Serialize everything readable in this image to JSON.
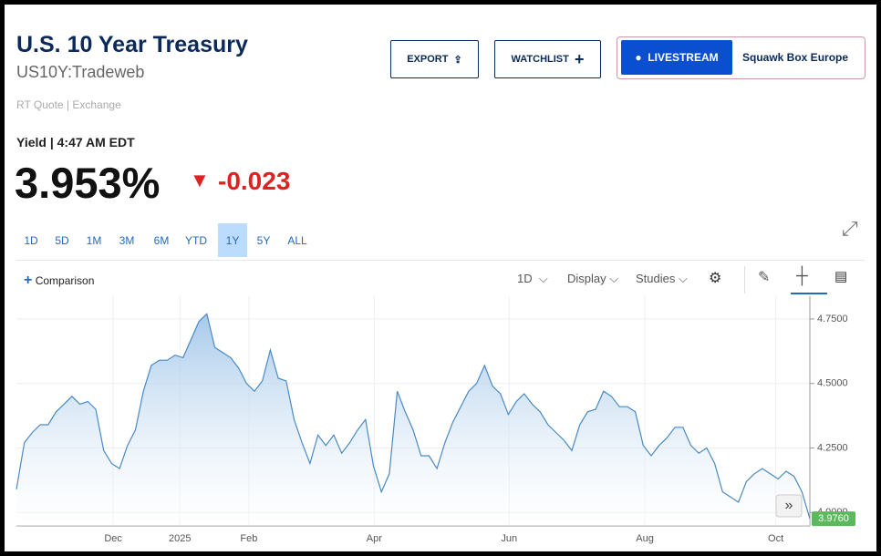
{
  "header": {
    "title": "U.S. 10 Year Treasury",
    "symbol": "US10Y:Tradeweb",
    "source": "RT Quote | Exchange"
  },
  "buttons": {
    "export": "EXPORT",
    "watchlist": "WATCHLIST",
    "livestream": "LIVESTREAM",
    "show": "Squawk Box Europe"
  },
  "quote": {
    "label": "Yield | 4:47 AM EDT",
    "price": "3.953%",
    "change": "-0.023"
  },
  "ranges": [
    "1D",
    "5D",
    "1M",
    "3M",
    "6M",
    "YTD",
    "1Y",
    "5Y",
    "ALL"
  ],
  "active_range": "1Y",
  "toolbar": {
    "comparison": "Comparison",
    "interval": "1D",
    "display": "Display",
    "studies": "Studies"
  },
  "chart_data": {
    "type": "area",
    "color": "#4a8ac4",
    "series": [
      {
        "name": "US10Y",
        "color": "#4a8ac4",
        "values": [
          4.09,
          4.27,
          4.31,
          4.34,
          4.34,
          4.39,
          4.42,
          4.45,
          4.42,
          4.43,
          4.4,
          4.24,
          4.19,
          4.17,
          4.26,
          4.32,
          4.47,
          4.57,
          4.59,
          4.59,
          4.61,
          4.6,
          4.67,
          4.74,
          4.77,
          4.64,
          4.62,
          4.6,
          4.56,
          4.5,
          4.47,
          4.51,
          4.63,
          4.52,
          4.51,
          4.36,
          4.27,
          4.19,
          4.3,
          4.26,
          4.3,
          4.23,
          4.27,
          4.32,
          4.36,
          4.18,
          4.08,
          4.15,
          4.47,
          4.39,
          4.32,
          4.22,
          4.22,
          4.17,
          4.27,
          4.35,
          4.41,
          4.47,
          4.5,
          4.57,
          4.49,
          4.46,
          4.38,
          4.43,
          4.46,
          4.42,
          4.39,
          4.34,
          4.31,
          4.28,
          4.24,
          4.34,
          4.39,
          4.4,
          4.47,
          4.45,
          4.41,
          4.41,
          4.39,
          4.26,
          4.22,
          4.26,
          4.29,
          4.33,
          4.33,
          4.26,
          4.23,
          4.25,
          4.19,
          4.08,
          4.06,
          4.04,
          4.12,
          4.15,
          4.17,
          4.15,
          4.13,
          4.16,
          4.14,
          4.08,
          3.976
        ]
      }
    ],
    "last_label": "3.9760",
    "xlim": [
      0,
      100
    ],
    "xticks": [
      {
        "value": 12.2,
        "label": "Dec"
      },
      {
        "value": 20.6,
        "label": "2025"
      },
      {
        "value": 29.3,
        "label": "Feb"
      },
      {
        "value": 45.1,
        "label": "Apr"
      },
      {
        "value": 62.1,
        "label": "Jun"
      },
      {
        "value": 79.2,
        "label": "Aug"
      },
      {
        "value": 95.7,
        "label": "Oct"
      }
    ],
    "ylim": [
      3.948,
      4.838
    ],
    "yticks": [
      {
        "value": 4.0,
        "label": "4.0000"
      },
      {
        "value": 4.25,
        "label": "4.2500"
      },
      {
        "value": 4.5,
        "label": "4.5000"
      },
      {
        "value": 4.75,
        "label": "4.7500"
      }
    ],
    "grid": true
  }
}
